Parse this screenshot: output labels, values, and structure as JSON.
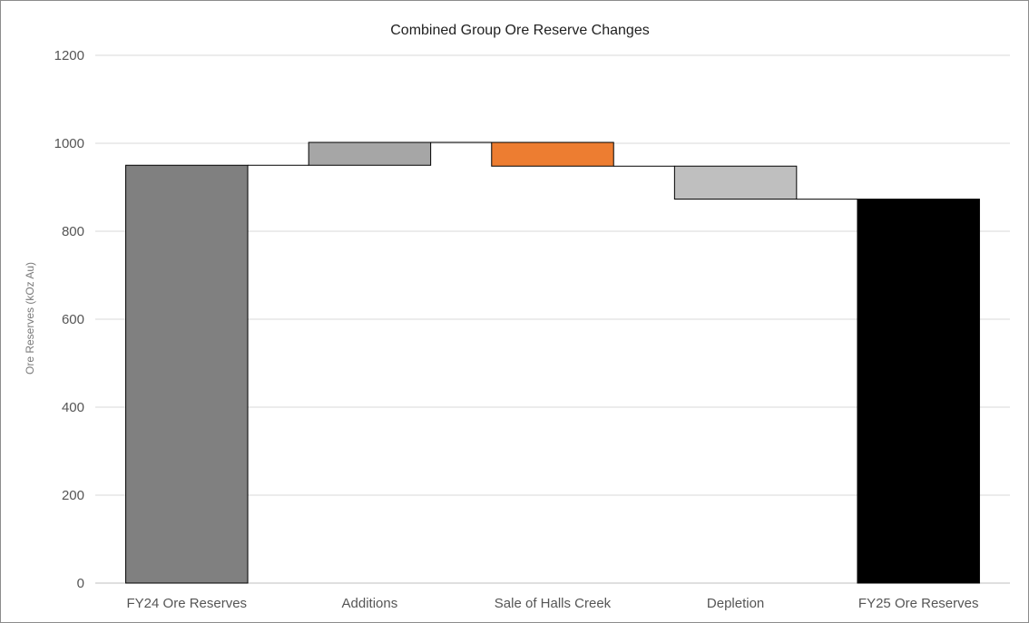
{
  "chart_data": {
    "type": "bar",
    "subtype": "waterfall",
    "title": "Combined Group Ore Reserve Changes",
    "xlabel": "",
    "ylabel": "Ore Reserves (kOz Au)",
    "ylim": [
      0,
      1200
    ],
    "yticks": [
      0,
      200,
      400,
      600,
      800,
      1000,
      1200
    ],
    "grid": true,
    "legend": "none",
    "categories": [
      "FY24 Ore Reserves",
      "Additions",
      "Sale of Halls Creek",
      "Depletion",
      "FY25 Ore Reserves"
    ],
    "bars": [
      {
        "label": "FY24 Ore Reserves",
        "kind": "total",
        "start": 0,
        "end": 950,
        "color": "#808080"
      },
      {
        "label": "Additions",
        "kind": "increase",
        "start": 950,
        "end": 1002,
        "color": "#a6a6a6"
      },
      {
        "label": "Sale of Halls Creek",
        "kind": "decrease",
        "start": 1002,
        "end": 948,
        "color": "#ed7d31"
      },
      {
        "label": "Depletion",
        "kind": "decrease",
        "start": 948,
        "end": 873,
        "color": "#bfbfbf"
      },
      {
        "label": "FY25 Ore Reserves",
        "kind": "total",
        "start": 0,
        "end": 873,
        "color": "#000000"
      }
    ]
  }
}
